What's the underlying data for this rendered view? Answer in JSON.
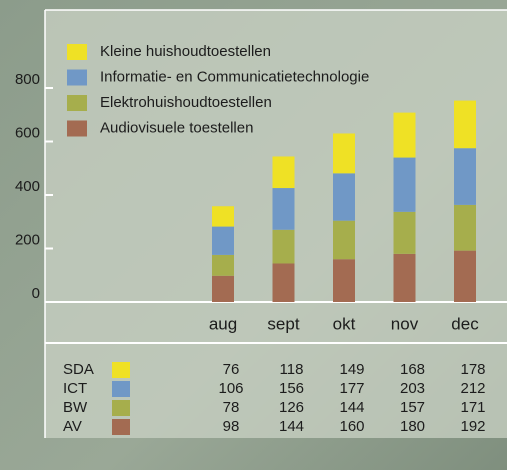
{
  "chart_data": {
    "type": "stacked-bar",
    "categories": [
      "aug",
      "sept",
      "okt",
      "nov",
      "dec"
    ],
    "series": [
      {
        "name": "Audiovisuele toestellen",
        "short": "AV",
        "color": "#a36b52",
        "values": [
          98,
          144,
          160,
          180,
          192
        ]
      },
      {
        "name": "Elektrohuishoudtoestellen",
        "short": "BW",
        "color": "#a6ae4c",
        "values": [
          78,
          126,
          144,
          157,
          171
        ]
      },
      {
        "name": "Informatie- en Communicatietechnologie",
        "short": "ICT",
        "color": "#7098c6",
        "values": [
          106,
          156,
          177,
          203,
          212
        ]
      },
      {
        "name": "Kleine huishoudtoestellen",
        "short": "SDA",
        "color": "#efe125",
        "values": [
          76,
          118,
          149,
          168,
          178
        ]
      }
    ],
    "ylim": [
      0,
      800
    ],
    "yticks": [
      0,
      200,
      400,
      600,
      800
    ]
  }
}
